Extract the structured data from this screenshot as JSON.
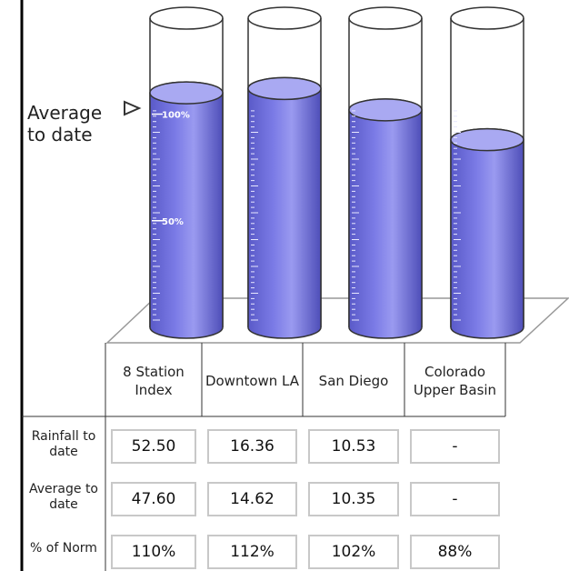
{
  "chart_data": {
    "type": "cylinder",
    "annotation": "Average to date",
    "categories": [
      "8 Station Index",
      "Downtown LA",
      "San Diego",
      "Colorado Upper Basin"
    ],
    "ylim": [
      0,
      145
    ],
    "yticks": [
      {
        "value": 100,
        "label": "100%"
      },
      {
        "value": 50,
        "label": "50%"
      }
    ],
    "color": "#7b7be6",
    "series": [
      {
        "name": "% of Norm",
        "values": [
          110,
          112,
          102,
          88
        ],
        "value_labels": [
          "110%",
          "112%",
          "102%",
          "88%"
        ]
      }
    ],
    "table": {
      "rows": [
        {
          "label": "Rainfall to date",
          "cells": [
            "52.50",
            "16.36",
            "10.53",
            "-"
          ]
        },
        {
          "label": "Average to date",
          "cells": [
            "47.60",
            "14.62",
            "10.35",
            "-"
          ]
        }
      ]
    }
  }
}
